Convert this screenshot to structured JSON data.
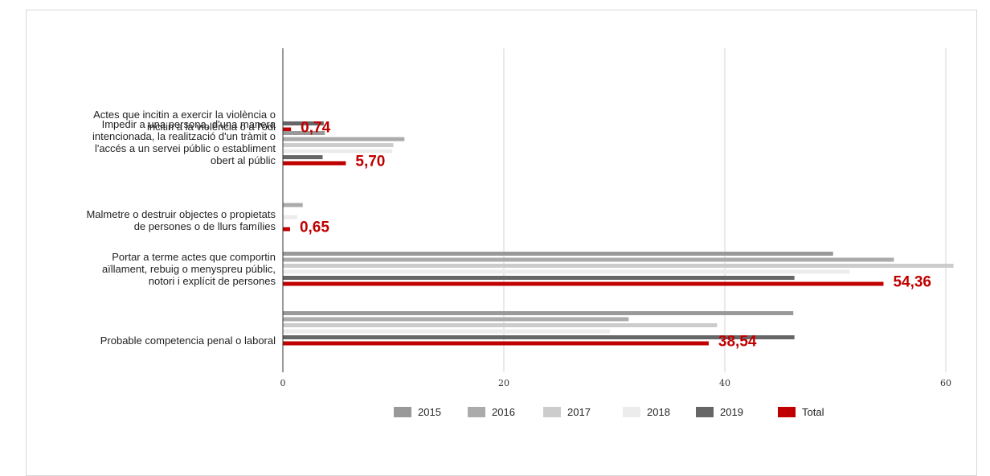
{
  "chart_data": {
    "type": "bar",
    "orientation": "horizontal",
    "title": "",
    "xlabel": "",
    "ylabel": "",
    "xlim": [
      0,
      61
    ],
    "xticks": [
      0,
      20,
      40,
      60
    ],
    "grid": true,
    "legend_position": "bottom",
    "categories": [
      [
        "Actes que incitin a exercir la violència o",
        "incitin a la violència o a l'odi"
      ],
      [
        "Impedir a una persona, d'una manera",
        "intencionada, la realització d'un tràmit o",
        "l'accés a un servei públic o establiment",
        "obert al públic"
      ],
      [
        "Malmetre o destruir objectes o propietats",
        "de persones o de llurs famílies"
      ],
      [
        "Portar a terme actes que comportin",
        "aïllament, rebuig o menyspreu públic,",
        "notori i explícit de persones"
      ],
      [
        "Probable competencia penal o laboral"
      ]
    ],
    "series": [
      {
        "name": "2015",
        "color": "#999999",
        "values": [
          0,
          3.8,
          0,
          49.8,
          46.2
        ]
      },
      {
        "name": "2016",
        "color": "#ababab",
        "values": [
          0,
          11.0,
          1.8,
          55.3,
          31.3
        ]
      },
      {
        "name": "2017",
        "color": "#cccccc",
        "values": [
          0,
          10.0,
          0,
          60.7,
          39.3
        ]
      },
      {
        "name": "2018",
        "color": "#ececec",
        "values": [
          0,
          9.9,
          1.3,
          51.3,
          29.6
        ]
      },
      {
        "name": "2019",
        "color": "#666666",
        "values": [
          3.7,
          3.6,
          0,
          46.3,
          46.3
        ]
      },
      {
        "name": "Total",
        "color": "#c00000",
        "values": [
          0.74,
          5.7,
          0.65,
          54.36,
          38.54
        ]
      }
    ],
    "total_labels": [
      "0,74",
      "5,70",
      "0,65",
      "54,36",
      "38,54"
    ]
  }
}
